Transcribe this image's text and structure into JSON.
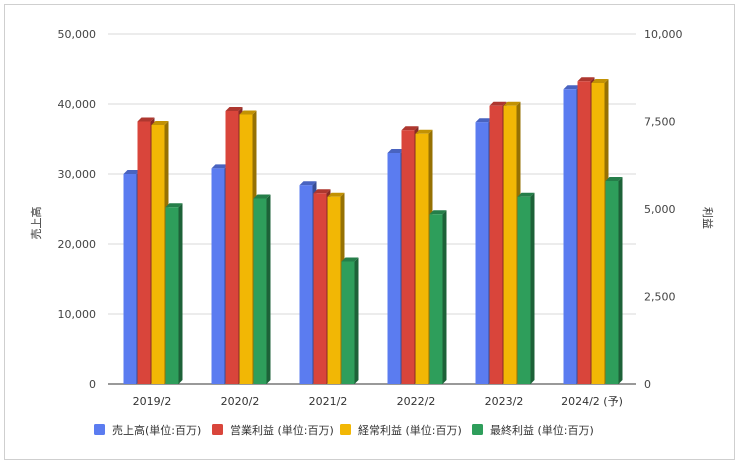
{
  "chart_data": {
    "type": "bar",
    "title": "",
    "categories": [
      "2019/2",
      "2020/2",
      "2021/2",
      "2022/2",
      "2023/2",
      "2024/2 (予)"
    ],
    "left_axis": {
      "label": "売上高",
      "ylim": [
        0,
        50000
      ],
      "ticks": [
        "0",
        "10,000",
        "20,000",
        "30,000",
        "40,000",
        "50,000"
      ]
    },
    "right_axis": {
      "label": "利益",
      "ylim": [
        0,
        10000
      ],
      "ticks": [
        "0",
        "2,500",
        "5,000",
        "7,500",
        "10,000"
      ]
    },
    "series": [
      {
        "name": "売上高(単位:百万)",
        "axis": "left",
        "color": "#5b7cf0",
        "values": [
          30000,
          30800,
          28400,
          33000,
          37400,
          42100
        ]
      },
      {
        "name": "営業利益 (単位:百万)",
        "axis": "right",
        "color": "#d9453b",
        "values": [
          7500,
          7800,
          5450,
          7250,
          7950,
          8650
        ]
      },
      {
        "name": "経常利益 (単位:百万)",
        "axis": "right",
        "color": "#f2b705",
        "values": [
          7400,
          7700,
          5350,
          7150,
          7950,
          8600
        ]
      },
      {
        "name": "最終利益 (単位:百万)",
        "axis": "right",
        "color": "#2e9e5b",
        "values": [
          5050,
          5300,
          3500,
          4850,
          5350,
          5800
        ]
      }
    ],
    "grid": true,
    "legend_position": "bottom"
  }
}
